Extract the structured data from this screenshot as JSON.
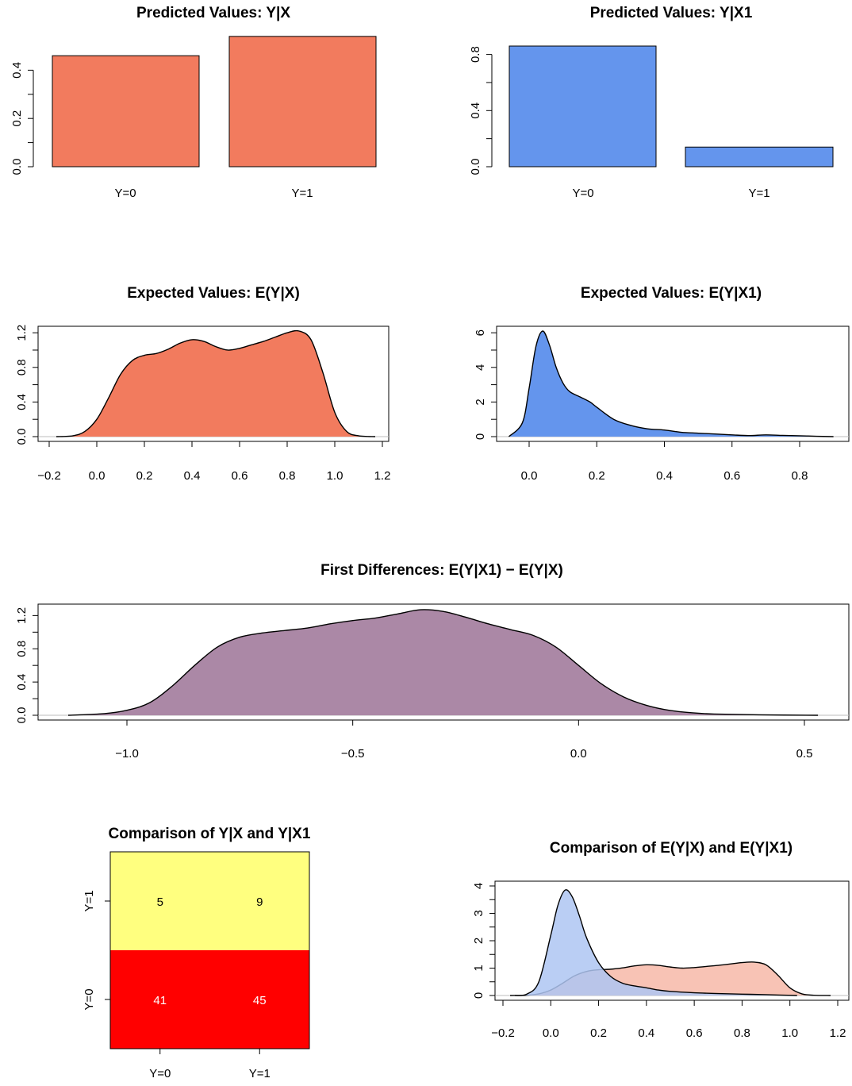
{
  "colors": {
    "salmon": "#F27B5E",
    "blue": "#6495ED",
    "purple": "#AB88A6",
    "yellow": "#FFFF7F",
    "red": "#FF0000",
    "salmon_light": "#F7B8A8",
    "blue_light": "#AEC6F2",
    "overlap": "#A6A1C9",
    "axis": "#000000",
    "baseline": "#BEBEBE"
  },
  "chart_data": [
    {
      "id": "pv-x",
      "type": "bar",
      "title": "Predicted Values: Y|X",
      "categories": [
        "Y=0",
        "Y=1"
      ],
      "values": [
        0.46,
        0.54
      ],
      "ylim": [
        0,
        0.5
      ],
      "yticks": [
        "0.0",
        "0.2",
        "0.4"
      ],
      "color": "salmon",
      "legend": "none",
      "grid": false
    },
    {
      "id": "pv-x1",
      "type": "bar",
      "title": "Predicted Values: Y|X1",
      "categories": [
        "Y=0",
        "Y=1"
      ],
      "values": [
        0.86,
        0.14
      ],
      "ylim": [
        0,
        0.86
      ],
      "yticks": [
        "0.0",
        "0.4",
        "0.8"
      ],
      "color": "blue",
      "legend": "none",
      "grid": false
    },
    {
      "id": "ev-x",
      "type": "area",
      "title": "Expected Values: E(Y|X)",
      "xlim": [
        -0.2,
        1.2
      ],
      "ylim": [
        0,
        1.22
      ],
      "xticks": [
        "−0.2",
        "0.0",
        "0.2",
        "0.4",
        "0.6",
        "0.8",
        "1.0",
        "1.2"
      ],
      "yticks": [
        "0.0",
        "0.4",
        "0.8",
        "1.2"
      ],
      "x": [
        -0.17,
        -0.1,
        -0.05,
        0.0,
        0.05,
        0.1,
        0.15,
        0.2,
        0.25,
        0.3,
        0.35,
        0.4,
        0.45,
        0.5,
        0.55,
        0.6,
        0.65,
        0.7,
        0.75,
        0.8,
        0.85,
        0.9,
        0.95,
        1.0,
        1.05,
        1.1,
        1.17
      ],
      "y": [
        0.0,
        0.01,
        0.06,
        0.2,
        0.45,
        0.72,
        0.88,
        0.94,
        0.96,
        1.01,
        1.08,
        1.12,
        1.1,
        1.04,
        1.0,
        1.02,
        1.06,
        1.1,
        1.15,
        1.2,
        1.22,
        1.12,
        0.74,
        0.28,
        0.06,
        0.01,
        0.0
      ],
      "color": "salmon",
      "legend": "none",
      "grid": false
    },
    {
      "id": "ev-x1",
      "type": "area",
      "title": "Expected Values: E(Y|X1)",
      "xlim": [
        -0.08,
        0.92
      ],
      "ylim": [
        0,
        6.1
      ],
      "xticks": [
        "0.0",
        "0.2",
        "0.4",
        "0.6",
        "0.8"
      ],
      "yticks": [
        "0",
        "2",
        "4",
        "6"
      ],
      "x": [
        -0.06,
        -0.02,
        0.0,
        0.02,
        0.04,
        0.06,
        0.08,
        0.1,
        0.12,
        0.15,
        0.18,
        0.2,
        0.25,
        0.3,
        0.35,
        0.4,
        0.45,
        0.5,
        0.55,
        0.6,
        0.65,
        0.7,
        0.75,
        0.8,
        0.85,
        0.9
      ],
      "y": [
        0.0,
        0.8,
        2.8,
        5.2,
        6.1,
        5.3,
        4.0,
        3.1,
        2.6,
        2.3,
        2.0,
        1.7,
        1.0,
        0.65,
        0.45,
        0.38,
        0.25,
        0.2,
        0.15,
        0.1,
        0.06,
        0.1,
        0.07,
        0.05,
        0.02,
        0.0
      ],
      "color": "blue",
      "legend": "none",
      "grid": false
    },
    {
      "id": "fd",
      "type": "area",
      "title": "First Differences: E(Y|X1) − E(Y|X)",
      "xlim": [
        -1.2,
        0.55
      ],
      "ylim": [
        0,
        1.28
      ],
      "xticks": [
        "−1.0",
        "−0.5",
        "0.0",
        "0.5"
      ],
      "yticks": [
        "0.0",
        "0.4",
        "0.8",
        "1.2"
      ],
      "x": [
        -1.13,
        -1.05,
        -1.0,
        -0.95,
        -0.9,
        -0.85,
        -0.8,
        -0.75,
        -0.7,
        -0.65,
        -0.6,
        -0.55,
        -0.5,
        -0.45,
        -0.4,
        -0.35,
        -0.3,
        -0.25,
        -0.2,
        -0.15,
        -0.1,
        -0.05,
        0.0,
        0.05,
        0.1,
        0.15,
        0.2,
        0.25,
        0.3,
        0.4,
        0.53
      ],
      "y": [
        0.0,
        0.02,
        0.06,
        0.15,
        0.35,
        0.6,
        0.82,
        0.94,
        0.99,
        1.02,
        1.05,
        1.1,
        1.14,
        1.17,
        1.22,
        1.27,
        1.25,
        1.18,
        1.1,
        1.03,
        0.96,
        0.82,
        0.6,
        0.38,
        0.22,
        0.12,
        0.06,
        0.03,
        0.015,
        0.005,
        0.0
      ],
      "color": "purple",
      "legend": "none",
      "grid": false
    },
    {
      "id": "cmp-table",
      "type": "table",
      "title": "Comparison of Y|X and Y|X1",
      "row_labels": [
        "Y=1",
        "Y=0"
      ],
      "col_labels": [
        "Y=0",
        "Y=1"
      ],
      "cells": [
        [
          5,
          9
        ],
        [
          41,
          45
        ]
      ],
      "row_colors": [
        "yellow",
        "red"
      ],
      "cell_text_colors": [
        "#000000",
        "#FFFFFF"
      ]
    },
    {
      "id": "cmp-ev",
      "type": "area",
      "title": "Comparison of E(Y|X) and E(Y|X1)",
      "xlim": [
        -0.2,
        1.2
      ],
      "ylim": [
        0,
        4
      ],
      "xticks": [
        "−0.2",
        "0.0",
        "0.2",
        "0.4",
        "0.6",
        "0.8",
        "1.0",
        "1.2"
      ],
      "yticks": [
        "0",
        "1",
        "2",
        "3",
        "4"
      ],
      "series": [
        {
          "x": [
            -0.17,
            -0.1,
            -0.05,
            0.0,
            0.05,
            0.1,
            0.15,
            0.2,
            0.25,
            0.3,
            0.35,
            0.4,
            0.45,
            0.5,
            0.55,
            0.6,
            0.65,
            0.7,
            0.75,
            0.8,
            0.85,
            0.9,
            0.95,
            1.0,
            1.05,
            1.1,
            1.17
          ],
          "y": [
            0.0,
            0.01,
            0.06,
            0.2,
            0.45,
            0.72,
            0.88,
            0.94,
            0.96,
            1.01,
            1.08,
            1.12,
            1.1,
            1.04,
            1.0,
            1.02,
            1.06,
            1.1,
            1.15,
            1.2,
            1.22,
            1.12,
            0.74,
            0.28,
            0.06,
            0.01,
            0.0
          ],
          "color": "salmon_light"
        },
        {
          "x": [
            -0.15,
            -0.1,
            -0.05,
            0.0,
            0.03,
            0.06,
            0.09,
            0.12,
            0.15,
            0.2,
            0.25,
            0.3,
            0.35,
            0.4,
            0.45,
            0.5,
            0.6,
            0.7,
            0.8,
            0.9,
            1.03
          ],
          "y": [
            0.0,
            0.05,
            0.5,
            2.2,
            3.3,
            3.85,
            3.6,
            2.9,
            2.1,
            1.2,
            0.7,
            0.45,
            0.35,
            0.28,
            0.2,
            0.15,
            0.1,
            0.07,
            0.05,
            0.03,
            0.0
          ],
          "color": "blue_light"
        }
      ],
      "legend": "none",
      "grid": false
    }
  ]
}
